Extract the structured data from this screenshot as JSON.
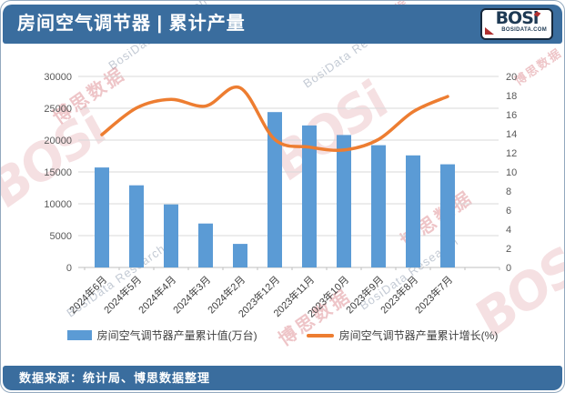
{
  "header": {
    "title": "房间空气调节器 | 累计产量"
  },
  "logo": {
    "wordmark": "BOS",
    "i": "i",
    "domain": "BOSIDATA.COM"
  },
  "footer": {
    "source": "数据来源：统计局、博思数据整理"
  },
  "watermarks": {
    "wordmark": "BOSi",
    "cn": "博思数据",
    "research": "BosiData Research"
  },
  "colors": {
    "header_bg": "#3A6D9E",
    "bar": "#5B9BD5",
    "line": "#ED7D31",
    "grid": "#D9D9D9",
    "axis_line": "#BFBFBF",
    "axis_text": "#595959",
    "label_text": "#404040",
    "logo_navy": "#1E3A54",
    "logo_red": "#B03030"
  },
  "chart_data": {
    "type": "combo",
    "title": "房间空气调节器 | 累计产量",
    "categories": [
      "2024年6月",
      "2024年5月",
      "2024年4月",
      "2024年3月",
      "2024年2月",
      "2023年12月",
      "2023年11月",
      "2023年10月",
      "2023年9月",
      "2023年8月",
      "2023年7月"
    ],
    "series": [
      {
        "name": "房间空气调节器产量累计值(万台)",
        "type": "bar",
        "axis": "left",
        "color": "#5B9BD5",
        "values": [
          15700,
          12900,
          9900,
          6900,
          3700,
          24400,
          22300,
          20800,
          19200,
          17600,
          16200
        ]
      },
      {
        "name": "房间空气调节器产量累计增长(%)",
        "type": "line",
        "axis": "right",
        "color": "#ED7D31",
        "values": [
          13.9,
          16.7,
          17.6,
          16.9,
          18.8,
          13.4,
          12.6,
          12.3,
          13.4,
          16.3,
          17.9
        ]
      }
    ],
    "left_axis": {
      "min": 0,
      "max": 30000,
      "step": 5000,
      "ticks": [
        "30000",
        "25000",
        "20000",
        "15000",
        "10000",
        "5000",
        "0"
      ]
    },
    "right_axis": {
      "min": 0,
      "max": 20,
      "step": 2,
      "ticks": [
        "20",
        "18",
        "16",
        "14",
        "12",
        "10",
        "8",
        "6",
        "4",
        "2",
        "0"
      ]
    },
    "grid": true,
    "legend_position": "bottom",
    "x_label_rotation": -45
  }
}
